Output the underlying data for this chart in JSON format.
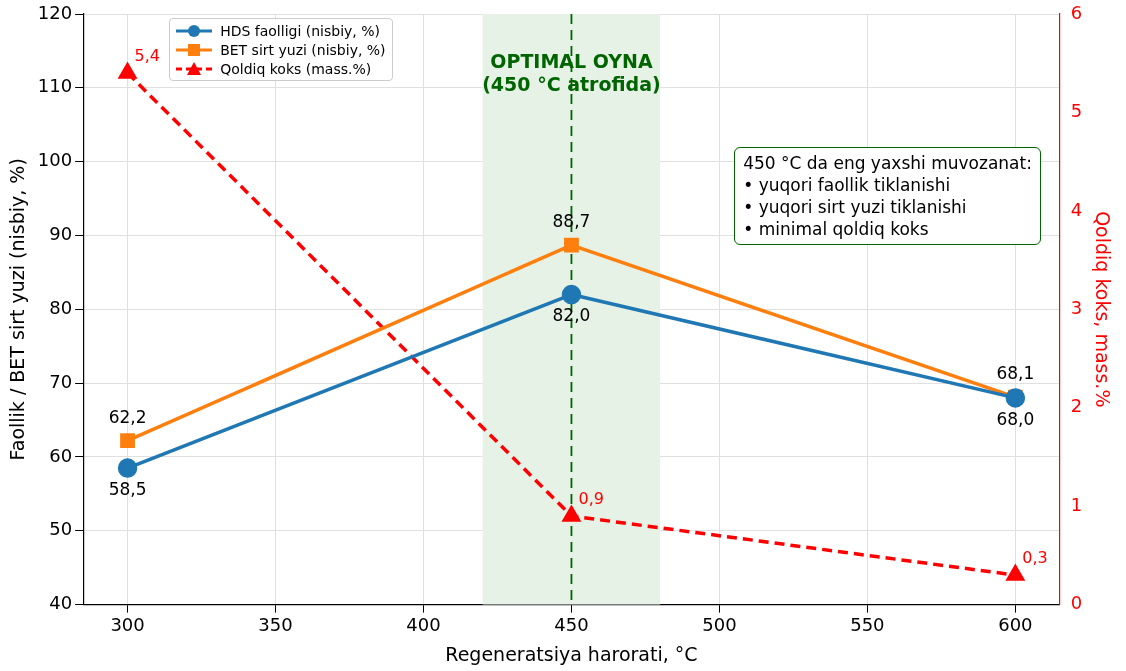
{
  "chart_data": {
    "type": "line",
    "xlabel": "Regeneratsiya harorati, °C",
    "ylabel": "Faollik / BET sirt yuzi (nisbiy, %)",
    "y2label": "Qoldiq koks, mass.%",
    "x": [
      300,
      450,
      600
    ],
    "xlim": [
      285,
      615
    ],
    "xticks": [
      300,
      350,
      400,
      450,
      500,
      550,
      600
    ],
    "ylim": [
      40,
      120
    ],
    "yticks": [
      40,
      50,
      60,
      70,
      80,
      90,
      100,
      110,
      120
    ],
    "y2lim": [
      0,
      6
    ],
    "y2ticks": [
      0,
      1,
      2,
      3,
      4,
      5,
      6
    ],
    "series": [
      {
        "name": "HDS faolligi (nisbiy, %)",
        "color": "#1f77b4",
        "marker": "circle",
        "line_style": "solid",
        "values": [
          58.5,
          82.0,
          68.0
        ],
        "value_labels": [
          "58,5",
          "82,0",
          "68,0"
        ]
      },
      {
        "name": "BET sirt yuzi (nisbiy, %)",
        "color": "#ff7f0e",
        "marker": "square",
        "line_style": "solid",
        "values": [
          62.2,
          88.7,
          68.1
        ],
        "value_labels": [
          "62,2",
          "88,7",
          "68,1"
        ]
      },
      {
        "name": "Qoldiq koks (mass.%)",
        "color": "#ff0000",
        "marker": "triangle",
        "line_style": "dashed",
        "axis": "y2",
        "values": [
          5.4,
          0.9,
          0.3
        ],
        "value_labels": [
          "5,4",
          "0,9",
          "0,3"
        ]
      }
    ],
    "bands": [
      {
        "axis": "x",
        "from": 420,
        "to": 480,
        "label": "OPTIMAL OYNA\n(450 °C atrofida)",
        "color": "#e6f2e6"
      }
    ],
    "ref_lines": [
      {
        "axis": "x",
        "value": 450,
        "color": "#006400",
        "line_style": "dashed"
      }
    ],
    "annotations": [
      "450 °C da eng yaxshi muvozanat:\n• yuqori faollik tiklanishi\n• yuqori sirt yuzi tiklanishi\n• minimal qoldiq koks"
    ],
    "grid": true,
    "legend": "top left"
  }
}
